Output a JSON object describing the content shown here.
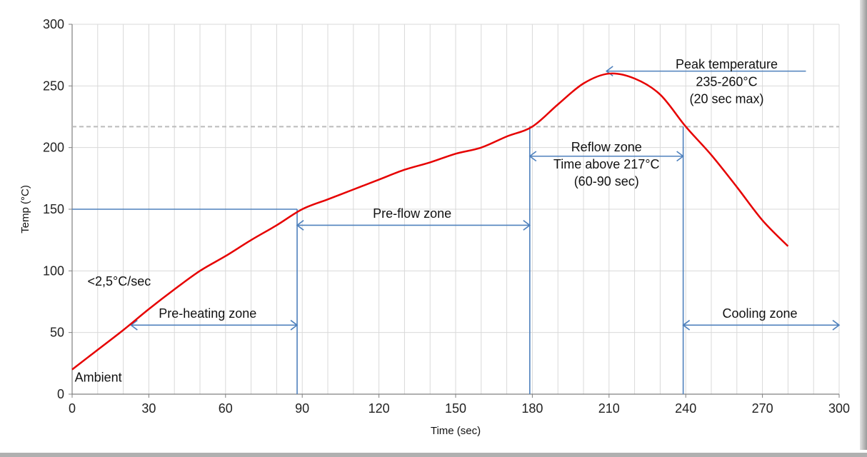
{
  "chart_data": {
    "type": "line",
    "xlabel": "Time (sec)",
    "ylabel": "Temp (°C)",
    "xlim": [
      0,
      300
    ],
    "ylim": [
      0,
      300
    ],
    "x_ticks": [
      0,
      30,
      60,
      90,
      120,
      150,
      180,
      210,
      240,
      270,
      300
    ],
    "y_ticks": [
      0,
      50,
      100,
      150,
      200,
      250,
      300
    ],
    "grid": "vertical every 10 sec, horizontal every 50 °C",
    "series": [
      {
        "color": "#e60000",
        "x": [
          0,
          10,
          20,
          30,
          40,
          50,
          60,
          70,
          80,
          90,
          100,
          110,
          120,
          130,
          140,
          150,
          160,
          170,
          180,
          190,
          200,
          210,
          220,
          230,
          240,
          250,
          260,
          270,
          280
        ],
        "y": [
          20,
          36,
          52,
          69,
          85,
          100,
          112,
          125,
          137,
          150,
          158,
          166,
          174,
          182,
          188,
          195,
          200,
          209,
          217,
          235,
          252,
          260,
          256,
          243,
          217,
          194,
          168,
          141,
          120
        ]
      }
    ],
    "reference_lines": [
      {
        "axis": "y",
        "value": 217,
        "style": "dashed",
        "color": "#bbbbbb"
      }
    ],
    "zone_markers": [
      {
        "type": "vline",
        "x": 88,
        "y_from": 0,
        "y_to": 150
      },
      {
        "type": "vline",
        "x": 179,
        "y_from": 0,
        "y_to": 217
      },
      {
        "type": "vline",
        "x": 239,
        "y_from": 0,
        "y_to": 217
      },
      {
        "type": "hline",
        "y": 150,
        "x_from": 0,
        "x_to": 88
      },
      {
        "type": "arrow",
        "from": [
          23,
          56
        ],
        "to": [
          88,
          56
        ],
        "heads": "both"
      },
      {
        "type": "arrow",
        "from": [
          88,
          137
        ],
        "to": [
          179,
          137
        ],
        "heads": "both"
      },
      {
        "type": "arrow",
        "from": [
          179,
          193
        ],
        "to": [
          239,
          193
        ],
        "heads": "both"
      },
      {
        "type": "arrow",
        "from": [
          239,
          56
        ],
        "to": [
          300,
          56
        ],
        "heads": "both"
      },
      {
        "type": "arrow",
        "from": [
          287,
          262
        ],
        "to": [
          209,
          262
        ],
        "heads": "end"
      }
    ],
    "annotations": [
      {
        "id": "ambient",
        "text": "Ambient",
        "x": 1,
        "y": 10,
        "anchor": "start"
      },
      {
        "id": "rate",
        "text": "<2,5°C/sec",
        "x": 6,
        "y": 88,
        "anchor": "start"
      },
      {
        "id": "preheat",
        "text": "Pre-heating zone",
        "x": 53,
        "y": 62,
        "anchor": "middle"
      },
      {
        "id": "preflow",
        "text": "Pre-flow zone",
        "x": 133,
        "y": 143,
        "anchor": "middle"
      },
      {
        "id": "reflow-1",
        "text": "Reflow zone",
        "x": 209,
        "y": 197,
        "anchor": "middle"
      },
      {
        "id": "reflow-2",
        "text": "Time above 217°C",
        "x": 209,
        "y": 183,
        "anchor": "middle"
      },
      {
        "id": "reflow-3",
        "text": "(60-90 sec)",
        "x": 209,
        "y": 169,
        "anchor": "middle"
      },
      {
        "id": "peak-1",
        "text": "Peak temperature",
        "x": 256,
        "y": 264,
        "anchor": "middle"
      },
      {
        "id": "peak-2",
        "text": "235-260°C",
        "x": 256,
        "y": 250,
        "anchor": "middle"
      },
      {
        "id": "peak-3",
        "text": "(20 sec max)",
        "x": 256,
        "y": 236,
        "anchor": "middle"
      },
      {
        "id": "cooling",
        "text": "Cooling zone",
        "x": 269,
        "y": 62,
        "anchor": "middle"
      }
    ]
  }
}
